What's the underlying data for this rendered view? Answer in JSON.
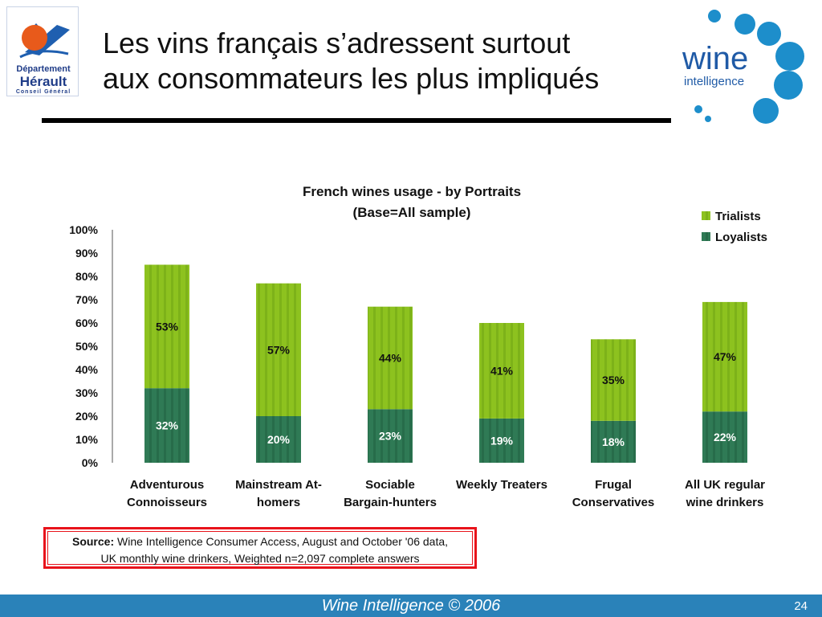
{
  "header": {
    "title_lines": [
      "Les vins français s’adressent surtout",
      "aux consommateurs les plus impliqués"
    ]
  },
  "logos": {
    "departement": {
      "line1": "Département",
      "line2": "Hérault",
      "line3": "Conseil Général"
    },
    "wine_intelligence": {
      "word1": "wine",
      "word2": "intelligence"
    }
  },
  "colors": {
    "trialists": "#8dc21f",
    "loyalists": "#2f7a55",
    "footer": "#2a82b9",
    "brand_blue": "#1d8ecb",
    "source_border": "#e8131b"
  },
  "chart_data": {
    "type": "bar",
    "stacked": true,
    "title": "French wines usage - by Portraits",
    "subtitle": "(Base=All sample)",
    "categories": [
      [
        "Adventurous",
        "Connoisseurs"
      ],
      [
        "Mainstream At-",
        "homers"
      ],
      [
        "Sociable",
        "Bargain-hunters"
      ],
      [
        "Weekly Treaters",
        ""
      ],
      [
        "Frugal",
        "Conservatives"
      ],
      [
        "All UK regular",
        "wine drinkers"
      ]
    ],
    "series": [
      {
        "name": "Loyalists",
        "values": [
          32,
          20,
          23,
          19,
          18,
          22
        ],
        "labels": [
          "32%",
          "20%",
          "23%",
          "19%",
          "18%",
          "22%"
        ]
      },
      {
        "name": "Trialists",
        "values": [
          53,
          57,
          44,
          41,
          35,
          47
        ],
        "labels": [
          "53%",
          "57%",
          "44%",
          "41%",
          "35%",
          "47%"
        ]
      }
    ],
    "legend": [
      "Trialists",
      "Loyalists"
    ],
    "legend_position": "top-right",
    "ylim": [
      0,
      100
    ],
    "yticks": [
      "0%",
      "10%",
      "20%",
      "30%",
      "40%",
      "50%",
      "60%",
      "70%",
      "80%",
      "90%",
      "100%"
    ]
  },
  "source": {
    "label": "Source:",
    "line1": " Wine Intelligence Consumer Access, August and October '06 data,",
    "line2": "UK monthly wine drinkers, Weighted n=2,097 complete answers"
  },
  "footer": {
    "text": "Wine Intelligence © 2006",
    "page_number": "24"
  }
}
